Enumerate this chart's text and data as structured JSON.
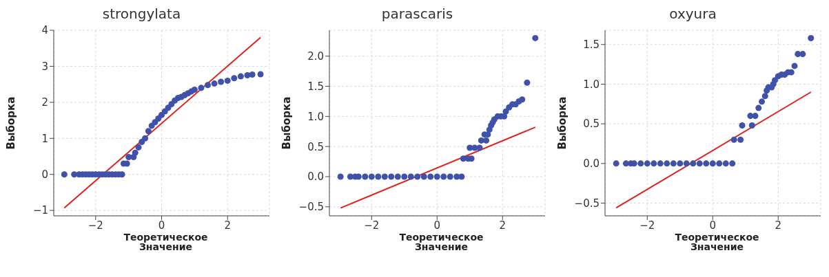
{
  "chart_data": [
    {
      "type": "scatter",
      "title": "strongylata",
      "xlabel": "Теоретическое\nЗначение",
      "ylabel": "Выборка",
      "xlim": [
        -3.27,
        3.27
      ],
      "xticks": [
        -2,
        0,
        2
      ],
      "ylim": [
        -1.15,
        4
      ],
      "yticks": [
        -1,
        0,
        1,
        2,
        3,
        4
      ],
      "grid": true,
      "series": [
        {
          "type": "scatter",
          "marker": "circle",
          "color": "#3f51a8",
          "x": [
            -2.95,
            -2.65,
            -2.5,
            -2.4,
            -2.3,
            -2.2,
            -2.1,
            -2.0,
            -1.9,
            -1.8,
            -1.7,
            -1.6,
            -1.5,
            -1.4,
            -1.3,
            -1.2,
            -1.15,
            -1.05,
            -1.0,
            -0.85,
            -0.8,
            -0.7,
            -0.6,
            -0.5,
            -0.4,
            -0.3,
            -0.2,
            -0.1,
            0,
            0.1,
            0.2,
            0.3,
            0.4,
            0.5,
            0.6,
            0.7,
            0.8,
            0.9,
            1.0,
            1.2,
            1.4,
            1.6,
            1.8,
            2.0,
            2.2,
            2.4,
            2.6,
            2.75,
            3.0
          ],
          "values": [
            0,
            0,
            0,
            0,
            0,
            0,
            0,
            0,
            0,
            0,
            0,
            0,
            0,
            0,
            0,
            0,
            0.3,
            0.3,
            0.48,
            0.48,
            0.6,
            0.75,
            0.9,
            1.0,
            1.2,
            1.35,
            1.45,
            1.55,
            1.65,
            1.75,
            1.85,
            1.95,
            2.05,
            2.12,
            2.15,
            2.2,
            2.25,
            2.3,
            2.35,
            2.4,
            2.48,
            2.52,
            2.57,
            2.6,
            2.67,
            2.72,
            2.75,
            2.77,
            2.78
          ]
        },
        {
          "type": "line",
          "marker": "none",
          "color": "#e0201b",
          "x": [
            -2.95,
            3.0
          ],
          "values": [
            -0.93,
            3.8
          ]
        }
      ]
    },
    {
      "type": "scatter",
      "title": "parascaris",
      "xlabel": "Теоретическое\nЗначение",
      "ylabel": "Выборка",
      "xlim": [
        -3.29,
        3.3
      ],
      "xticks": [
        -2,
        0,
        2
      ],
      "ylim": [
        -0.65,
        2.43
      ],
      "yticks": [
        -0.5,
        {
          "value": 0,
          "label": "0.0"
        },
        0.5,
        {
          "value": 1,
          "label": "1.0"
        },
        1.5,
        {
          "value": 2,
          "label": "2.0"
        }
      ],
      "grid": true,
      "series": [
        {
          "type": "scatter",
          "marker": "circle",
          "color": "#3f51a8",
          "x": [
            -2.95,
            -2.65,
            -2.5,
            -2.4,
            -2.2,
            -2.0,
            -1.8,
            -1.6,
            -1.4,
            -1.2,
            -1.0,
            -0.8,
            -0.6,
            -0.4,
            -0.2,
            0,
            0.2,
            0.4,
            0.6,
            0.75,
            0.8,
            0.95,
            1.05,
            1.0,
            1.15,
            1.3,
            1.35,
            1.5,
            1.45,
            1.55,
            1.6,
            1.65,
            1.7,
            1.75,
            1.85,
            1.95,
            2.05,
            2.1,
            2.2,
            2.3,
            2.4,
            2.5,
            2.6,
            2.75,
            3.0
          ],
          "values": [
            0,
            0,
            0,
            0,
            0,
            0,
            0,
            0,
            0,
            0,
            0,
            0,
            0,
            0,
            0,
            0,
            0,
            0,
            0,
            0,
            0.3,
            0.3,
            0.3,
            0.48,
            0.48,
            0.48,
            0.6,
            0.6,
            0.7,
            0.7,
            0.78,
            0.85,
            0.9,
            0.95,
            1.0,
            1.0,
            1.0,
            1.08,
            1.15,
            1.2,
            1.2,
            1.25,
            1.28,
            1.56,
            2.3
          ]
        },
        {
          "type": "line",
          "marker": "none",
          "color": "#e0201b",
          "x": [
            -2.95,
            3.0
          ],
          "values": [
            -0.52,
            0.82
          ]
        }
      ]
    },
    {
      "type": "scatter",
      "title": "oxyura",
      "xlabel": "Теоретическое\nЗначение",
      "ylabel": "Выборка",
      "xlim": [
        -3.29,
        3.3
      ],
      "xticks": [
        -2,
        0,
        2
      ],
      "ylim": [
        -0.66,
        1.68
      ],
      "yticks": [
        -0.5,
        {
          "value": 0,
          "label": "0.0"
        },
        0.5,
        {
          "value": 1,
          "label": "1.0"
        },
        1.5
      ],
      "grid": true,
      "series": [
        {
          "type": "scatter",
          "marker": "circle",
          "color": "#3f51a8",
          "x": [
            -2.95,
            -2.65,
            -2.5,
            -2.4,
            -2.2,
            -2.0,
            -1.8,
            -1.6,
            -1.4,
            -1.2,
            -1.0,
            -0.8,
            -0.6,
            -0.4,
            -0.2,
            0,
            0.2,
            0.4,
            0.6,
            0.65,
            0.85,
            0.9,
            1.2,
            1.15,
            1.3,
            1.4,
            1.5,
            1.6,
            1.65,
            1.7,
            1.8,
            1.85,
            1.9,
            2.0,
            2.1,
            2.2,
            2.3,
            2.4,
            2.5,
            2.6,
            2.75,
            3.0
          ],
          "values": [
            0,
            0,
            0,
            0,
            0,
            0,
            0,
            0,
            0,
            0,
            0,
            0,
            0,
            0,
            0,
            0,
            0,
            0,
            0,
            0.3,
            0.3,
            0.48,
            0.48,
            0.6,
            0.6,
            0.7,
            0.78,
            0.85,
            0.92,
            0.96,
            0.96,
            1.0,
            1.05,
            1.1,
            1.12,
            1.12,
            1.15,
            1.15,
            1.23,
            1.38,
            1.38,
            1.58
          ]
        },
        {
          "type": "line",
          "marker": "none",
          "color": "#e0201b",
          "x": [
            -2.95,
            3.0
          ],
          "values": [
            -0.56,
            0.9
          ]
        }
      ]
    }
  ]
}
